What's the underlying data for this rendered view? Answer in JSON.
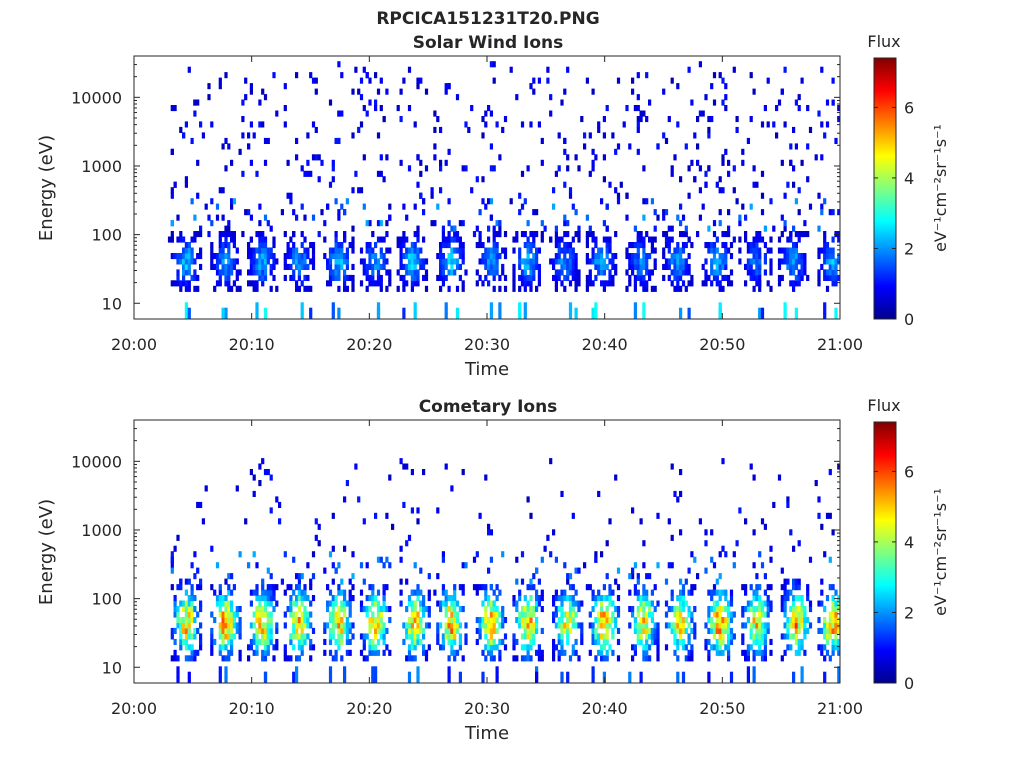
{
  "figure": {
    "title": "RPCICA151231T20.PNG"
  },
  "chart_data": [
    {
      "type": "heatmap",
      "title": "Solar Wind Ions",
      "xlabel": "Time",
      "ylabel": "Energy (eV)",
      "x_ticks": [
        "20:00",
        "20:10",
        "20:20",
        "20:30",
        "20:40",
        "20:50",
        "21:00"
      ],
      "y_ticks": [
        "10",
        "100",
        "1000",
        "10000"
      ],
      "y_scale": "log",
      "xlim": [
        "20:00",
        "21:00"
      ],
      "ylim": [
        5.9,
        40000
      ],
      "colorbar": {
        "label": "Flux",
        "units": "eV⁻¹cm⁻²sr⁻¹s⁻¹",
        "ticks": [
          "0",
          "2",
          "4",
          "6"
        ],
        "range": [
          0,
          7.4
        ],
        "colormap": "jet"
      },
      "scans": [
        {
          "t_min": 4.4,
          "peak_flux": 2.2
        },
        {
          "t_min": 7.8,
          "peak_flux": 1.8
        },
        {
          "t_min": 10.8,
          "peak_flux": 1.9
        },
        {
          "t_min": 14.0,
          "peak_flux": 1.8
        },
        {
          "t_min": 17.3,
          "peak_flux": 2.1
        },
        {
          "t_min": 20.5,
          "peak_flux": 1.7
        },
        {
          "t_min": 23.7,
          "peak_flux": 2.2
        },
        {
          "t_min": 27.0,
          "peak_flux": 2.3
        },
        {
          "t_min": 30.3,
          "peak_flux": 1.8
        },
        {
          "t_min": 33.4,
          "peak_flux": 2.0
        },
        {
          "t_min": 36.7,
          "peak_flux": 1.7
        },
        {
          "t_min": 39.8,
          "peak_flux": 2.0
        },
        {
          "t_min": 43.0,
          "peak_flux": 1.6
        },
        {
          "t_min": 46.2,
          "peak_flux": 1.8
        },
        {
          "t_min": 49.5,
          "peak_flux": 2.0
        },
        {
          "t_min": 52.8,
          "peak_flux": 1.6
        },
        {
          "t_min": 56.0,
          "peak_flux": 1.9
        },
        {
          "t_min": 59.3,
          "peak_flux": 2.0
        }
      ],
      "core_energy_range_eV": [
        20,
        80
      ],
      "background_energy_range_eV": [
        80,
        30000
      ]
    },
    {
      "type": "heatmap",
      "title": "Cometary Ions",
      "xlabel": "Time",
      "ylabel": "Energy (eV)",
      "x_ticks": [
        "20:00",
        "20:10",
        "20:20",
        "20:30",
        "20:40",
        "20:50",
        "21:00"
      ],
      "y_ticks": [
        "10",
        "100",
        "1000",
        "10000"
      ],
      "y_scale": "log",
      "xlim": [
        "20:00",
        "21:00"
      ],
      "ylim": [
        5.9,
        40000
      ],
      "colorbar": {
        "label": "Flux",
        "units": "eV⁻¹cm⁻²sr⁻¹s⁻¹",
        "ticks": [
          "0",
          "2",
          "4",
          "6"
        ],
        "range": [
          0,
          7.4
        ],
        "colormap": "jet"
      },
      "scans": [
        {
          "t_min": 4.4,
          "peak_flux": 5.3
        },
        {
          "t_min": 7.8,
          "peak_flux": 5.6
        },
        {
          "t_min": 10.9,
          "peak_flux": 5.4
        },
        {
          "t_min": 14.1,
          "peak_flux": 5.5
        },
        {
          "t_min": 17.4,
          "peak_flux": 5.2
        },
        {
          "t_min": 20.6,
          "peak_flux": 5.3
        },
        {
          "t_min": 23.8,
          "peak_flux": 5.2
        },
        {
          "t_min": 27.1,
          "peak_flux": 5.6
        },
        {
          "t_min": 30.3,
          "peak_flux": 5.3
        },
        {
          "t_min": 33.5,
          "peak_flux": 5.5
        },
        {
          "t_min": 36.8,
          "peak_flux": 5.0
        },
        {
          "t_min": 39.9,
          "peak_flux": 5.7
        },
        {
          "t_min": 43.2,
          "peak_flux": 5.1
        },
        {
          "t_min": 46.4,
          "peak_flux": 5.0
        },
        {
          "t_min": 49.7,
          "peak_flux": 5.8
        },
        {
          "t_min": 52.9,
          "peak_flux": 5.0
        },
        {
          "t_min": 56.2,
          "peak_flux": 5.5
        },
        {
          "t_min": 59.4,
          "peak_flux": 5.7
        }
      ],
      "core_energy_range_eV": [
        15,
        120
      ],
      "background_energy_range_eV": [
        120,
        10000
      ]
    }
  ]
}
